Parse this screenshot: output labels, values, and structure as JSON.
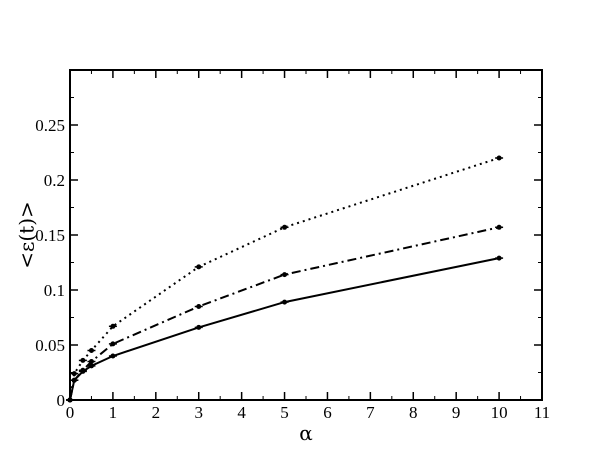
{
  "chart_data": {
    "type": "line",
    "title": "",
    "xlabel": "α",
    "ylabel": "<ε(t)>",
    "xlim": [
      0,
      11
    ],
    "ylim": [
      0,
      0.3
    ],
    "x_ticks": [
      0,
      1,
      2,
      3,
      4,
      5,
      6,
      7,
      8,
      9,
      10,
      11
    ],
    "x_tick_labels": [
      "0",
      "1",
      "2",
      "3",
      "4",
      "5",
      "6",
      "7",
      "8",
      "9",
      "10",
      "11"
    ],
    "y_ticks": [
      0,
      0.05,
      0.1,
      0.15,
      0.2,
      0.25
    ],
    "y_tick_labels": [
      "0",
      "0.05",
      "0.1",
      "0.15",
      "0.2",
      "0.25"
    ],
    "grid": false,
    "legend": "none",
    "series": [
      {
        "line_style": "dotted",
        "color": "#000000",
        "x": [
          0,
          0.1,
          0.3,
          0.5,
          1,
          3,
          5,
          10
        ],
        "y": [
          0,
          0.024,
          0.036,
          0.045,
          0.067,
          0.121,
          0.157,
          0.22
        ]
      },
      {
        "line_style": "dash-dot",
        "color": "#000000",
        "x": [
          0,
          0.1,
          0.3,
          0.5,
          1,
          3,
          5,
          10
        ],
        "y": [
          0,
          0.018,
          0.027,
          0.035,
          0.051,
          0.085,
          0.114,
          0.157
        ]
      },
      {
        "line_style": "solid",
        "color": "#000000",
        "x": [
          0,
          0.1,
          0.3,
          0.5,
          1,
          3,
          5,
          10
        ],
        "y": [
          0,
          0.018,
          0.026,
          0.031,
          0.04,
          0.066,
          0.089,
          0.129
        ]
      }
    ]
  }
}
